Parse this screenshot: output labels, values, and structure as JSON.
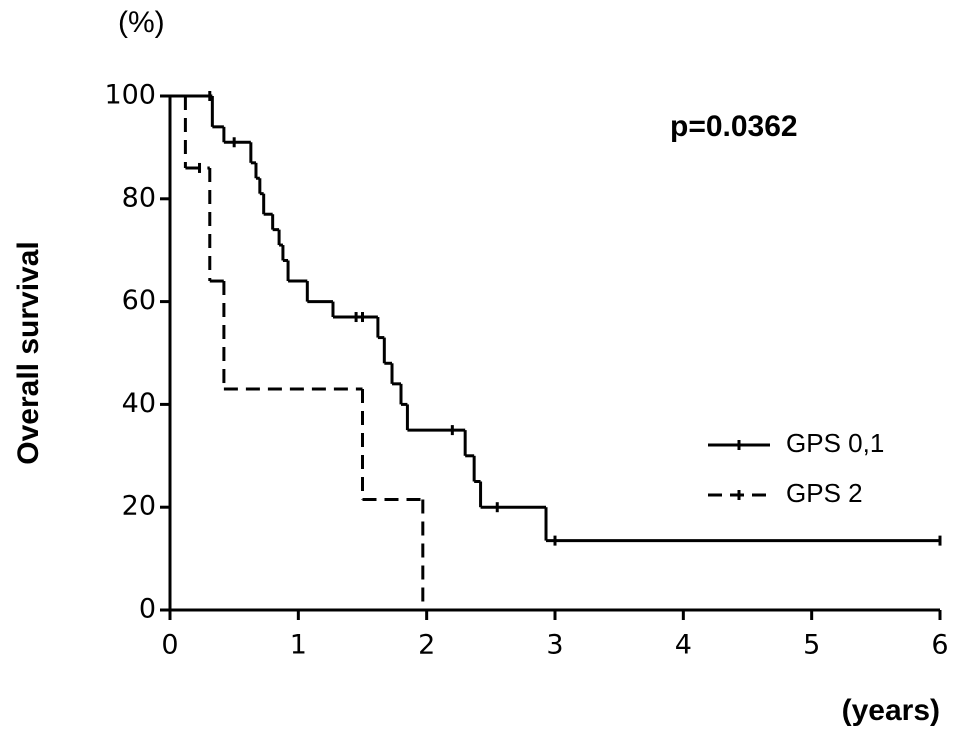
{
  "chart_data": {
    "type": "step",
    "y_label": "Overall survival",
    "y_unit_label": "(%)",
    "x_unit_label": "(years)",
    "annotation": "p=0.0362",
    "xlim": [
      0,
      6
    ],
    "xticks": [
      0,
      1,
      2,
      3,
      4,
      5,
      6
    ],
    "ylim": [
      0,
      100
    ],
    "yticks": [
      0,
      20,
      40,
      60,
      80,
      100
    ],
    "legend": "lower right",
    "series": [
      {
        "name": "GPS 0,1",
        "color": "#000000",
        "dash": false,
        "x": [
          0,
          0.33,
          0.42,
          0.63,
          0.67,
          0.7,
          0.73,
          0.8,
          0.85,
          0.88,
          0.92,
          1.07,
          1.27,
          1.62,
          1.67,
          1.73,
          1.8,
          1.85,
          2.3,
          2.37,
          2.42,
          2.93,
          6
        ],
        "values": [
          100,
          94,
          91,
          87,
          84,
          81,
          77,
          74,
          71,
          68,
          64,
          60,
          57,
          53,
          48,
          44,
          40,
          35,
          30,
          25,
          20,
          13.5,
          13.5
        ],
        "censor_x": [
          0.31,
          0.5,
          1.45,
          1.5,
          2.2,
          2.55,
          3.0,
          6.0
        ],
        "censor_values": [
          100,
          91,
          57,
          57,
          35,
          20,
          13.5,
          13.5
        ]
      },
      {
        "name": "GPS 2",
        "color": "#000000",
        "dash": true,
        "x": [
          0,
          0.12,
          0.31,
          0.42,
          1.5,
          1.97
        ],
        "values": [
          100,
          86,
          64,
          43,
          21.5,
          0
        ],
        "censor_x": [
          0.23
        ],
        "censor_values": [
          86
        ]
      }
    ]
  }
}
